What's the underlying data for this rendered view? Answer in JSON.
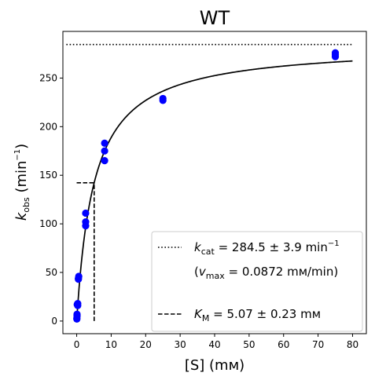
{
  "chart_data": {
    "type": "scatter",
    "title": "WT",
    "xlabel": {
      "pre": "[S] (",
      "unit": "mм",
      "post": ")"
    },
    "ylabel": {
      "var": "k",
      "sub": "obs",
      "mid": " (min",
      "sup": "−1",
      "post": ")"
    },
    "xlim": [
      -4,
      84
    ],
    "ylim": [
      -13,
      298
    ],
    "xticks": [
      0,
      10,
      20,
      30,
      40,
      50,
      60,
      70,
      80
    ],
    "yticks": [
      0,
      50,
      100,
      150,
      200,
      250
    ],
    "grid": false,
    "legend_position": "lower-right",
    "colors": {
      "points": "#0000ff",
      "fit": "#000000"
    },
    "points": {
      "x": [
        0.05,
        0.05,
        0.1,
        0.1,
        0.1,
        0.15,
        0.3,
        0.3,
        0.5,
        0.5,
        0.6,
        2.6,
        2.6,
        2.6,
        8.1,
        8.1,
        8.1,
        25,
        25,
        75,
        75,
        75
      ],
      "y": [
        2,
        3,
        5,
        7,
        6,
        17,
        18,
        16,
        43,
        44,
        46,
        111,
        102,
        98,
        183,
        175,
        165,
        229,
        227,
        276,
        274,
        272
      ]
    },
    "fit": {
      "model": "michaelis-menten",
      "kcat": 284.5,
      "km": 5.07,
      "x_range": [
        0,
        80
      ]
    },
    "kcat_line": {
      "y": 284.5,
      "x_range": [
        -3,
        80
      ]
    },
    "km_marker": {
      "x": 5.07,
      "half_y": 142.25,
      "h_from_x": 0
    },
    "legend": {
      "kcat": {
        "var": "k",
        "sub": "cat",
        "text": " = 284.5 ± 3.9 min",
        "sup": "−1"
      },
      "vmax": {
        "pre": "(",
        "var": "v",
        "sub": "max",
        "text": " = 0.0872 mм/min)"
      },
      "km": {
        "var": "K",
        "sub": "M",
        "text": " = 5.07 ± 0.23 mм"
      }
    }
  }
}
